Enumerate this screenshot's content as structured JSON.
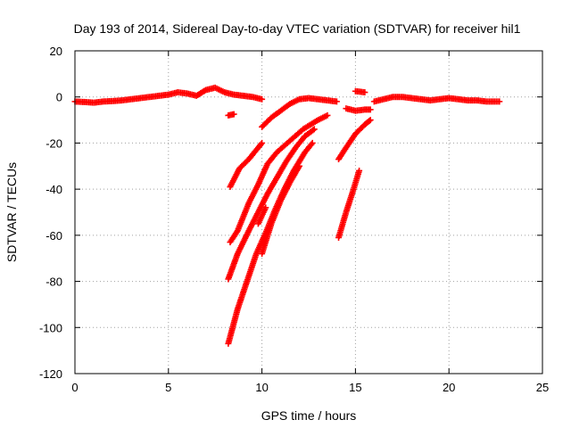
{
  "chart_data": {
    "type": "scatter",
    "title": "Day 193 of 2014, Sidereal Day-to-day VTEC variation (SDTVAR) for receiver hil1",
    "xlabel": "GPS time / hours",
    "ylabel": "SDTVAR / TECUs",
    "xlim": [
      0,
      25
    ],
    "ylim": [
      -120,
      20
    ],
    "xticks": [
      0,
      5,
      10,
      15,
      20,
      25
    ],
    "yticks": [
      20,
      0,
      -20,
      -40,
      -60,
      -80,
      -100,
      -120
    ],
    "grid": true,
    "legend": "none",
    "color": "#ff0000",
    "series": [
      {
        "points": [
          [
            0,
            -2
          ],
          [
            0.5,
            -2.2
          ],
          [
            1,
            -2.5
          ],
          [
            1.5,
            -2
          ],
          [
            2,
            -1.8
          ],
          [
            2.5,
            -1.5
          ],
          [
            3,
            -1
          ],
          [
            3.5,
            -0.5
          ],
          [
            4,
            0
          ],
          [
            4.5,
            0.5
          ],
          [
            5,
            1
          ],
          [
            5.5,
            2
          ],
          [
            6,
            1.5
          ],
          [
            6.5,
            0.5
          ],
          [
            7,
            3
          ],
          [
            7.5,
            4
          ],
          [
            8,
            2
          ],
          [
            8.5,
            1
          ],
          [
            9,
            0.5
          ],
          [
            9.5,
            0
          ],
          [
            10,
            -1
          ]
        ]
      },
      {
        "points": [
          [
            8.2,
            -8
          ],
          [
            8.5,
            -7.5
          ]
        ]
      },
      {
        "points": [
          [
            10,
            -13
          ],
          [
            10.5,
            -9
          ],
          [
            11,
            -6
          ],
          [
            11.5,
            -3
          ],
          [
            12,
            -1
          ],
          [
            12.5,
            -0.5
          ],
          [
            13,
            -1
          ],
          [
            13.5,
            -1.5
          ],
          [
            14,
            -2
          ]
        ]
      },
      {
        "points": [
          [
            15,
            2.5
          ],
          [
            15.5,
            2
          ]
        ]
      },
      {
        "points": [
          [
            16,
            -2
          ],
          [
            16.5,
            -1
          ],
          [
            17,
            0
          ],
          [
            17.5,
            0
          ],
          [
            18,
            -0.5
          ],
          [
            18.5,
            -1
          ],
          [
            19,
            -1.5
          ],
          [
            19.5,
            -1
          ],
          [
            20,
            -0.5
          ],
          [
            20.5,
            -1
          ],
          [
            21,
            -1.5
          ],
          [
            21.5,
            -1.5
          ],
          [
            22,
            -2
          ],
          [
            22.7,
            -2
          ]
        ]
      },
      {
        "points": [
          [
            8.3,
            -39
          ],
          [
            8.8,
            -31
          ],
          [
            9.3,
            -27
          ],
          [
            9.8,
            -22
          ],
          [
            10,
            -20
          ]
        ]
      },
      {
        "points": [
          [
            8.3,
            -63
          ],
          [
            8.7,
            -58
          ],
          [
            9.3,
            -46
          ],
          [
            9.8,
            -38
          ],
          [
            10.3,
            -29
          ],
          [
            10.8,
            -24
          ],
          [
            11.5,
            -19
          ],
          [
            12.2,
            -14
          ],
          [
            13,
            -10
          ],
          [
            13.5,
            -8
          ]
        ]
      },
      {
        "points": [
          [
            8.2,
            -79
          ],
          [
            8.7,
            -68
          ],
          [
            9.3,
            -58
          ],
          [
            9.8,
            -50
          ],
          [
            10.3,
            -42
          ],
          [
            10.8,
            -35
          ],
          [
            11.3,
            -28
          ],
          [
            11.8,
            -22
          ],
          [
            12.3,
            -17
          ],
          [
            12.8,
            -14
          ]
        ]
      },
      {
        "points": [
          [
            8.2,
            -107
          ],
          [
            8.7,
            -92
          ],
          [
            9.2,
            -80
          ],
          [
            9.7,
            -68
          ],
          [
            10.2,
            -59
          ],
          [
            10.7,
            -49
          ],
          [
            11.2,
            -40
          ],
          [
            11.7,
            -32
          ],
          [
            12.3,
            -24
          ],
          [
            12.7,
            -20
          ]
        ]
      },
      {
        "points": [
          [
            9.8,
            -55
          ],
          [
            10.2,
            -48
          ]
        ]
      },
      {
        "points": [
          [
            10,
            -68
          ],
          [
            10.5,
            -55
          ],
          [
            11,
            -45
          ],
          [
            11.5,
            -37
          ],
          [
            12,
            -30
          ]
        ]
      },
      {
        "points": [
          [
            14.1,
            -27
          ],
          [
            14.5,
            -22
          ],
          [
            15,
            -16
          ],
          [
            15.5,
            -12
          ],
          [
            15.8,
            -10
          ]
        ]
      },
      {
        "points": [
          [
            14.1,
            -61
          ],
          [
            14.5,
            -50
          ],
          [
            14.9,
            -40
          ],
          [
            15.2,
            -32
          ]
        ]
      },
      {
        "points": [
          [
            14.5,
            -5
          ],
          [
            15,
            -6
          ],
          [
            15.5,
            -5.5
          ],
          [
            15.8,
            -5.5
          ]
        ]
      }
    ]
  }
}
